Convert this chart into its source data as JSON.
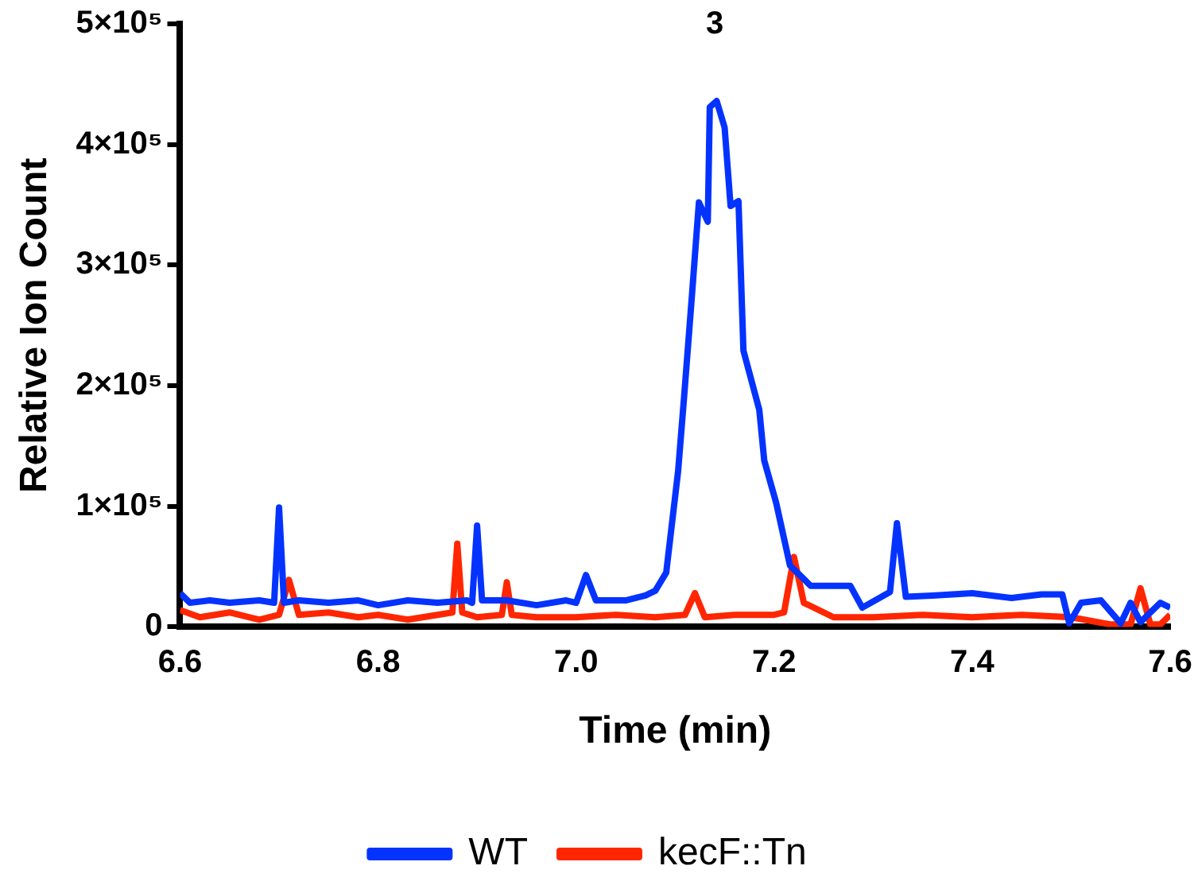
{
  "chart_data": {
    "type": "line",
    "xlabel": "Time (min)",
    "ylabel": "Relative Ion Count",
    "xlim": [
      6.6,
      7.6
    ],
    "xticks": [
      6.6,
      6.8,
      {
        "value": 7.0,
        "label": "7.0"
      },
      7.2,
      7.4,
      7.6
    ],
    "ylim": [
      0,
      500000
    ],
    "yticks": [
      {
        "value": 0,
        "label": "0"
      },
      {
        "value": 100000,
        "label": "1×10⁵"
      },
      {
        "value": 200000,
        "label": "2×10⁵"
      },
      {
        "value": 300000,
        "label": "3×10⁵"
      },
      {
        "value": 400000,
        "label": "4×10⁵"
      },
      {
        "value": 500000,
        "label": "5×10⁵"
      }
    ],
    "grid": false,
    "legend": "bottom",
    "marker": "none",
    "line_style": "solid",
    "annotations": [
      {
        "text": "3",
        "x": 7.14,
        "y": 436000
      }
    ],
    "series": [
      {
        "name": "WT",
        "color": "#0433ff",
        "x": [
          6.6,
          6.61,
          6.63,
          6.65,
          6.68,
          6.695,
          6.7,
          6.705,
          6.72,
          6.75,
          6.78,
          6.8,
          6.83,
          6.86,
          6.89,
          6.895,
          6.9,
          6.905,
          6.93,
          6.96,
          6.99,
          7.0,
          7.01,
          7.02,
          7.05,
          7.07,
          7.08,
          7.091,
          7.103,
          7.109,
          7.117,
          7.124,
          7.133,
          7.135,
          7.142,
          7.15,
          7.156,
          7.164,
          7.169,
          7.185,
          7.19,
          7.202,
          7.216,
          7.237,
          7.277,
          7.289,
          7.317,
          7.324,
          7.333,
          7.36,
          7.4,
          7.44,
          7.47,
          7.491,
          7.498,
          7.51,
          7.53,
          7.55,
          7.56,
          7.57,
          7.59,
          7.6
        ],
        "values": [
          28000,
          20000,
          22000,
          20000,
          22000,
          20000,
          99000,
          20000,
          22000,
          20000,
          22000,
          18000,
          22000,
          20000,
          22000,
          20000,
          84000,
          22000,
          22000,
          18000,
          22000,
          20000,
          43000,
          22000,
          22000,
          26000,
          30000,
          45000,
          129000,
          190000,
          275000,
          352000,
          336000,
          431000,
          436000,
          414000,
          349000,
          353000,
          229000,
          180000,
          138000,
          103000,
          51000,
          34000,
          34000,
          16000,
          29000,
          86000,
          25000,
          26000,
          28000,
          24000,
          27000,
          27000,
          3000,
          20000,
          22000,
          3000,
          20000,
          4000,
          20000,
          16000
        ]
      },
      {
        "name": "kecF::Tn",
        "color": "#ff2600",
        "x": [
          6.6,
          6.62,
          6.65,
          6.68,
          6.7,
          6.71,
          6.72,
          6.75,
          6.78,
          6.8,
          6.83,
          6.86,
          6.875,
          6.88,
          6.885,
          6.9,
          6.925,
          6.93,
          6.935,
          6.96,
          7.0,
          7.04,
          7.08,
          7.11,
          7.12,
          7.13,
          7.16,
          7.2,
          7.21,
          7.22,
          7.23,
          7.26,
          7.3,
          7.35,
          7.4,
          7.45,
          7.5,
          7.54,
          7.55,
          7.56,
          7.57,
          7.58,
          7.59,
          7.6
        ],
        "values": [
          14000,
          8000,
          12000,
          6000,
          10000,
          39000,
          10000,
          12000,
          8000,
          10000,
          6000,
          10000,
          12000,
          69000,
          12000,
          8000,
          10000,
          37000,
          10000,
          8000,
          8000,
          10000,
          8000,
          10000,
          28000,
          8000,
          10000,
          10000,
          12000,
          58000,
          20000,
          8000,
          8000,
          10000,
          8000,
          10000,
          8000,
          2000,
          2000,
          2000,
          32000,
          2000,
          2000,
          10000
        ]
      }
    ]
  }
}
